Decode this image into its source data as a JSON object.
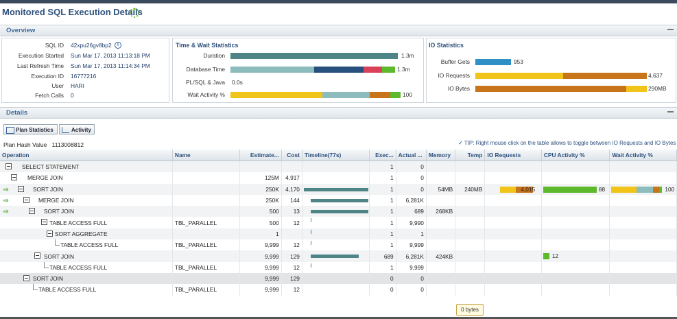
{
  "page_title": "Monitored SQL Execution Details",
  "overview": {
    "header": "Overview",
    "fields": [
      {
        "label": "SQL ID",
        "value": "42xpu26gv8bp2"
      },
      {
        "label": "Execution Started",
        "value": "Sun Mar 17, 2013 11:13:18 PM"
      },
      {
        "label": "Last Refresh Time",
        "value": "Sun Mar 17, 2013 11:14:34 PM"
      },
      {
        "label": "Execution ID",
        "value": "16777216"
      },
      {
        "label": "User",
        "value": "HARI"
      },
      {
        "label": "Fetch Calls",
        "value": "0"
      }
    ],
    "time_wait": {
      "title": "Time & Wait Statistics",
      "duration_label": "Duration",
      "duration_value": "1.3m",
      "dbtime_label": "Database Time",
      "dbtime_value": "1.3m",
      "plsql_label": "PL/SQL & Java",
      "plsql_value": "0.0s",
      "wait_label": "Wait Activity %",
      "wait_value": "100"
    },
    "io": {
      "title": "IO Statistics",
      "buffer_label": "Buffer Gets",
      "buffer_value": "953",
      "ioreq_label": "IO Requests",
      "ioreq_value": "4,637",
      "iobytes_label": "IO Bytes",
      "iobytes_value": "290MB"
    }
  },
  "details": {
    "header": "Details",
    "tabs": {
      "plan": "Plan Statistics",
      "activity": "Activity"
    },
    "plan_hash_label": "Plan Hash Value",
    "plan_hash_value": "1113008812",
    "tip": "TIP: Right mouse click on the table allows to toggle between IO Requests and IO Bytes",
    "columns": {
      "operation": "Operation",
      "name": "Name",
      "estimate": "Estimate...",
      "cost": "Cost",
      "timeline": "Timeline(77s)",
      "exec": "Exec...",
      "actual": "Actual ...",
      "memory": "Memory",
      "temp": "Temp",
      "ioreq": "IO Requests",
      "cpu": "CPU Activity %",
      "wait": "Wait Activity %"
    },
    "rows": [
      {
        "op": "SELECT STATEMENT",
        "name": "",
        "est": "",
        "cost": "",
        "exec": "1",
        "actual": "0",
        "mem": "",
        "temp": "",
        "io": "",
        "cpu": "",
        "wait": ""
      },
      {
        "op": "MERGE JOIN",
        "name": "",
        "est": "125M",
        "cost": "4,917",
        "exec": "1",
        "actual": "0",
        "mem": "",
        "temp": "",
        "io": "",
        "cpu": "",
        "wait": ""
      },
      {
        "op": "SORT JOIN",
        "name": "",
        "est": "250K",
        "cost": "4,170",
        "exec": "1",
        "actual": "0",
        "mem": "54MB",
        "temp": "240MB",
        "io": "4,015",
        "cpu": "88",
        "wait": "100"
      },
      {
        "op": "MERGE JOIN",
        "name": "",
        "est": "250K",
        "cost": "144",
        "exec": "1",
        "actual": "6,281K",
        "mem": "",
        "temp": "",
        "io": "",
        "cpu": "",
        "wait": ""
      },
      {
        "op": "SORT JOIN",
        "name": "",
        "est": "500",
        "cost": "13",
        "exec": "1",
        "actual": "689",
        "mem": "268KB",
        "temp": "",
        "io": "",
        "cpu": "",
        "wait": ""
      },
      {
        "op": "TABLE ACCESS FULL",
        "name": "TBL_PARALLEL",
        "est": "500",
        "cost": "12",
        "exec": "1",
        "actual": "9,990",
        "mem": "",
        "temp": "",
        "io": "",
        "cpu": "",
        "wait": ""
      },
      {
        "op": "SORT AGGREGATE",
        "name": "",
        "est": "1",
        "cost": "",
        "exec": "1",
        "actual": "1",
        "mem": "",
        "temp": "",
        "io": "",
        "cpu": "",
        "wait": ""
      },
      {
        "op": "TABLE ACCESS FULL",
        "name": "TBL_PARALLEL",
        "est": "9,999",
        "cost": "12",
        "exec": "1",
        "actual": "9,999",
        "mem": "",
        "temp": "",
        "io": "",
        "cpu": "",
        "wait": ""
      },
      {
        "op": "SORT JOIN",
        "name": "",
        "est": "9,999",
        "cost": "129",
        "exec": "689",
        "actual": "6,281K",
        "mem": "424KB",
        "temp": "",
        "io": "",
        "cpu": "12",
        "wait": ""
      },
      {
        "op": "TABLE ACCESS FULL",
        "name": "TBL_PARALLEL",
        "est": "9,999",
        "cost": "12",
        "exec": "1",
        "actual": "9,999",
        "mem": "",
        "temp": "",
        "io": "",
        "cpu": "",
        "wait": ""
      },
      {
        "op": "SORT JOIN",
        "name": "",
        "est": "9,999",
        "cost": "129",
        "exec": "0",
        "actual": "0",
        "mem": "",
        "temp": "",
        "io": "",
        "cpu": "",
        "wait": ""
      },
      {
        "op": "TABLE ACCESS FULL",
        "name": "TBL_PARALLEL",
        "est": "9,999",
        "cost": "12",
        "exec": "0",
        "actual": "0",
        "mem": "",
        "temp": "",
        "io": "",
        "cpu": "",
        "wait": ""
      }
    ],
    "tooltip": "0 bytes"
  },
  "colors": {
    "teal": "#4f8587",
    "light_teal": "#8cbcbc",
    "navy": "#27507f",
    "red": "#d9415a",
    "green": "#5fb92c",
    "yellow": "#f0c419",
    "orange": "#c8741a",
    "blue": "#2f8fc7"
  }
}
